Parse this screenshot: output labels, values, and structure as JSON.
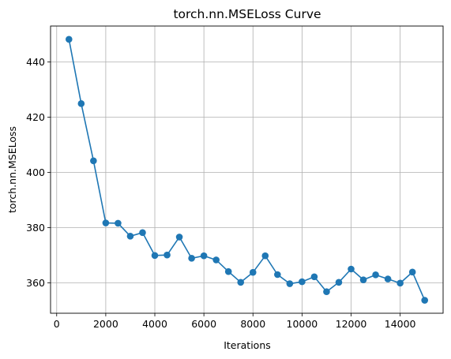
{
  "chart_data": {
    "type": "line",
    "title": "torch.nn.MSELoss Curve",
    "xlabel": "Iterations",
    "ylabel": "torch.nn.MSELoss",
    "xlim": [
      -250,
      15750
    ],
    "ylim": [
      349,
      453
    ],
    "xticks": [
      0,
      2000,
      4000,
      6000,
      8000,
      10000,
      12000,
      14000
    ],
    "yticks": [
      360,
      380,
      400,
      420,
      440
    ],
    "grid": true,
    "marker": "circle",
    "line_color": "#1f77b4",
    "series": [
      {
        "x": [
          500,
          1000,
          1500,
          2000,
          2500,
          3000,
          3500,
          4000,
          4500,
          5000,
          5500,
          6000,
          6500,
          7000,
          7500,
          8000,
          8500,
          9000,
          9500,
          10000,
          10500,
          11000,
          11500,
          12000,
          12500,
          13000,
          13500,
          14000,
          14500,
          15000
        ],
        "values": [
          448.2,
          424.9,
          404.2,
          381.7,
          381.6,
          376.9,
          378.2,
          369.9,
          370.1,
          376.6,
          368.9,
          369.8,
          368.3,
          364.1,
          360.2,
          363.8,
          369.8,
          363.0,
          359.7,
          360.4,
          362.2,
          356.8,
          360.2,
          365.0,
          361.1,
          362.9,
          361.4,
          359.9,
          363.9,
          353.7
        ]
      }
    ]
  }
}
